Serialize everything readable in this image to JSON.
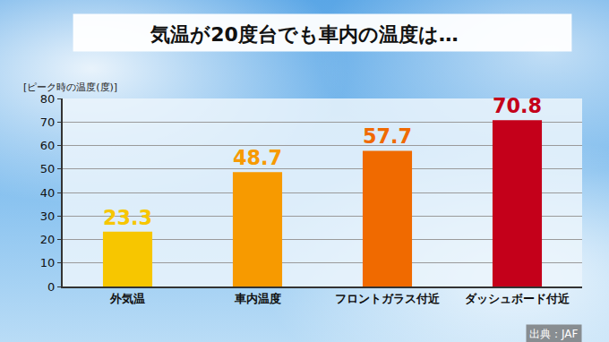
{
  "chart_data": {
    "type": "bar",
    "title": "気温が20度台でも車内の温度は…",
    "ylabel": "[ピーク時の温度(度)]",
    "categories": [
      "外気温",
      "車内温度",
      "フロントガラス付近",
      "ダッシュボード付近"
    ],
    "values": [
      23.3,
      48.7,
      57.7,
      70.8
    ],
    "colors": [
      "#f7c600",
      "#f79a00",
      "#f06a00",
      "#c4001a"
    ],
    "ylim": [
      0,
      80
    ],
    "yticks": [
      0,
      10,
      20,
      30,
      40,
      50,
      60,
      70,
      80
    ],
    "grid": true,
    "data_labels": true,
    "annotations": [
      "出典：JAF"
    ]
  }
}
